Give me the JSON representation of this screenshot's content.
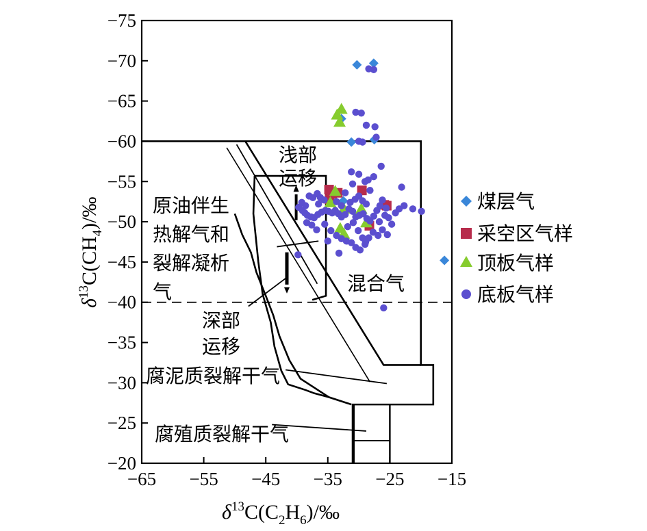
{
  "chart_data": {
    "type": "scatter",
    "xlabel": {
      "prefix": "δ",
      "sup": "13",
      "main": "C(C",
      "sub1": "2",
      "mid": "H",
      "sub2": "6",
      "suffix": ")/‰"
    },
    "ylabel": {
      "prefix": "δ",
      "sup": "13",
      "main": "C(CH",
      "sub1": "4",
      "suffix": ")/‰"
    },
    "xlim": [
      -65,
      -15
    ],
    "ylim": [
      -20,
      -75
    ],
    "xticks": [
      -65,
      -55,
      -45,
      -35,
      -25,
      -15
    ],
    "xtick_labels": [
      "−65",
      "−55",
      "−45",
      "−35",
      "−25",
      "−15"
    ],
    "yticks": [
      -75,
      -70,
      -65,
      -60,
      -55,
      -50,
      -45,
      -40,
      -35,
      -30,
      -25,
      -20
    ],
    "ytick_labels": [
      "−75",
      "−70",
      "−65",
      "−60",
      "−55",
      "−50",
      "−45",
      "−40",
      "−35",
      "−30",
      "−25",
      "−20"
    ],
    "grid": false,
    "legend_position": "right",
    "dashed_reference_y": -40,
    "zone_labels": {
      "shallow": [
        "浅部",
        "运移"
      ],
      "oil": [
        "原油伴生",
        "热解气和",
        "裂解凝析",
        "气"
      ],
      "deep": [
        "深部",
        "运移"
      ],
      "mixed": "混合气",
      "sapropelic": "腐泥质裂解干气",
      "humic": "腐殖质裂解干气"
    },
    "series": [
      {
        "name": "煤层气",
        "marker": "diamond",
        "color": "#3a87d9",
        "points": [
          [
            -30.3,
            -69.5
          ],
          [
            -27.6,
            -69.7
          ],
          [
            -32.8,
            -62.8
          ],
          [
            -31.2,
            -59.9
          ],
          [
            -27.5,
            -60.2
          ],
          [
            -16.2,
            -45.2
          ],
          [
            -32.5,
            -52.6
          ]
        ]
      },
      {
        "name": "采空区气样",
        "marker": "square",
        "color": "#b72c4c",
        "points": [
          [
            -34.8,
            -54.0
          ],
          [
            -34.3,
            -53.5
          ],
          [
            -34.7,
            -52.8
          ],
          [
            -33.4,
            -53.6
          ],
          [
            -29.5,
            -53.9
          ],
          [
            -25.9,
            -52.1
          ],
          [
            -25.5,
            -52.0
          ],
          [
            -28.3,
            -49.5
          ]
        ]
      },
      {
        "name": "顶板气样",
        "marker": "triangle",
        "color": "#86cc2e",
        "points": [
          [
            -32.8,
            -64.0
          ],
          [
            -33.5,
            -63.3
          ],
          [
            -33.1,
            -62.4
          ],
          [
            -33.8,
            -53.8
          ],
          [
            -32.4,
            -51.6
          ],
          [
            -29.6,
            -51.6
          ],
          [
            -28.8,
            -49.9
          ],
          [
            -33.0,
            -49.2
          ],
          [
            -32.4,
            -48.5
          ],
          [
            -34.6,
            -52.4
          ]
        ]
      },
      {
        "name": "底板气样",
        "marker": "circle",
        "color": "#5b4fcf",
        "points": [
          [
            -28.4,
            -69.0
          ],
          [
            -27.6,
            -68.9
          ],
          [
            -30.5,
            -63.6
          ],
          [
            -29.6,
            -63.5
          ],
          [
            -28.8,
            -62.0
          ],
          [
            -27.4,
            -61.8
          ],
          [
            -27.2,
            -60.5
          ],
          [
            -30.0,
            -60.0
          ],
          [
            -29.4,
            -59.9
          ],
          [
            -26.4,
            -56.9
          ],
          [
            -31.2,
            -56.2
          ],
          [
            -28.5,
            -55.2
          ],
          [
            -38.0,
            -53.2
          ],
          [
            -36.7,
            -53.5
          ],
          [
            -36.2,
            -53.0
          ],
          [
            -35.6,
            -52.7
          ],
          [
            -39.7,
            -51.8
          ],
          [
            -39.1,
            -51.4
          ],
          [
            -38.7,
            -51.1
          ],
          [
            -38.3,
            -50.8
          ],
          [
            -37.7,
            -50.6
          ],
          [
            -37.2,
            -50.5
          ],
          [
            -36.6,
            -50.9
          ],
          [
            -36.0,
            -51.2
          ],
          [
            -35.4,
            -51.4
          ],
          [
            -34.9,
            -51.3
          ],
          [
            -34.3,
            -51.1
          ],
          [
            -33.8,
            -51.4
          ],
          [
            -33.3,
            -51.0
          ],
          [
            -32.8,
            -50.6
          ],
          [
            -32.2,
            -50.9
          ],
          [
            -31.6,
            -51.6
          ],
          [
            -31.0,
            -51.3
          ],
          [
            -30.5,
            -50.6
          ],
          [
            -29.9,
            -50.8
          ],
          [
            -29.3,
            -51.0
          ],
          [
            -28.7,
            -50.4
          ],
          [
            -28.2,
            -50.1
          ],
          [
            -27.6,
            -50.7
          ],
          [
            -27.1,
            -51.4
          ],
          [
            -26.6,
            -52.0
          ],
          [
            -26.2,
            -52.7
          ],
          [
            -25.6,
            -51.7
          ],
          [
            -25.2,
            -50.5
          ],
          [
            -24.7,
            -49.7
          ],
          [
            -24.1,
            -51.1
          ],
          [
            -23.5,
            -51.6
          ],
          [
            -23.1,
            -54.3
          ],
          [
            -22.7,
            -52.0
          ],
          [
            -21.3,
            -51.6
          ],
          [
            -19.9,
            -51.3
          ],
          [
            -38.4,
            -49.9
          ],
          [
            -37.6,
            -49.6
          ],
          [
            -36.8,
            -49.0
          ],
          [
            -35.5,
            -49.7
          ],
          [
            -34.5,
            -48.9
          ],
          [
            -33.6,
            -48.3
          ],
          [
            -32.8,
            -47.9
          ],
          [
            -32.0,
            -47.6
          ],
          [
            -31.2,
            -47.4
          ],
          [
            -30.5,
            -46.8
          ],
          [
            -29.8,
            -46.5
          ],
          [
            -29.0,
            -47.2
          ],
          [
            -28.4,
            -48.0
          ],
          [
            -27.7,
            -48.7
          ],
          [
            -26.9,
            -48.3
          ],
          [
            -26.2,
            -49.0
          ],
          [
            -25.4,
            -48.4
          ],
          [
            -31.8,
            -49.4
          ],
          [
            -30.9,
            -49.9
          ],
          [
            -30.1,
            -48.9
          ],
          [
            -29.4,
            -48.0
          ],
          [
            -28.9,
            -47.5
          ],
          [
            -35.0,
            -47.6
          ],
          [
            -33.6,
            -52.5
          ],
          [
            -32.8,
            -52.0
          ],
          [
            -32.2,
            -53.6
          ],
          [
            -31.4,
            -52.4
          ],
          [
            -30.6,
            -52.8
          ],
          [
            -30.0,
            -53.2
          ],
          [
            -29.4,
            -52.6
          ],
          [
            -28.8,
            -52.2
          ],
          [
            -28.2,
            -53.9
          ],
          [
            -31.0,
            -54.7
          ],
          [
            -30.0,
            -55.9
          ],
          [
            -29.0,
            -55.0
          ],
          [
            -27.6,
            -55.6
          ],
          [
            -37.4,
            -53.0
          ],
          [
            -39.8,
            -45.9
          ],
          [
            -26.0,
            -39.3
          ],
          [
            -26.7,
            -50.0
          ],
          [
            -25.8,
            -50.8
          ],
          [
            -33.2,
            -46.1
          ],
          [
            -36.5,
            -52.2
          ],
          [
            -39.2,
            -52.4
          ],
          [
            -38.6,
            -52.0
          ]
        ]
      }
    ]
  }
}
